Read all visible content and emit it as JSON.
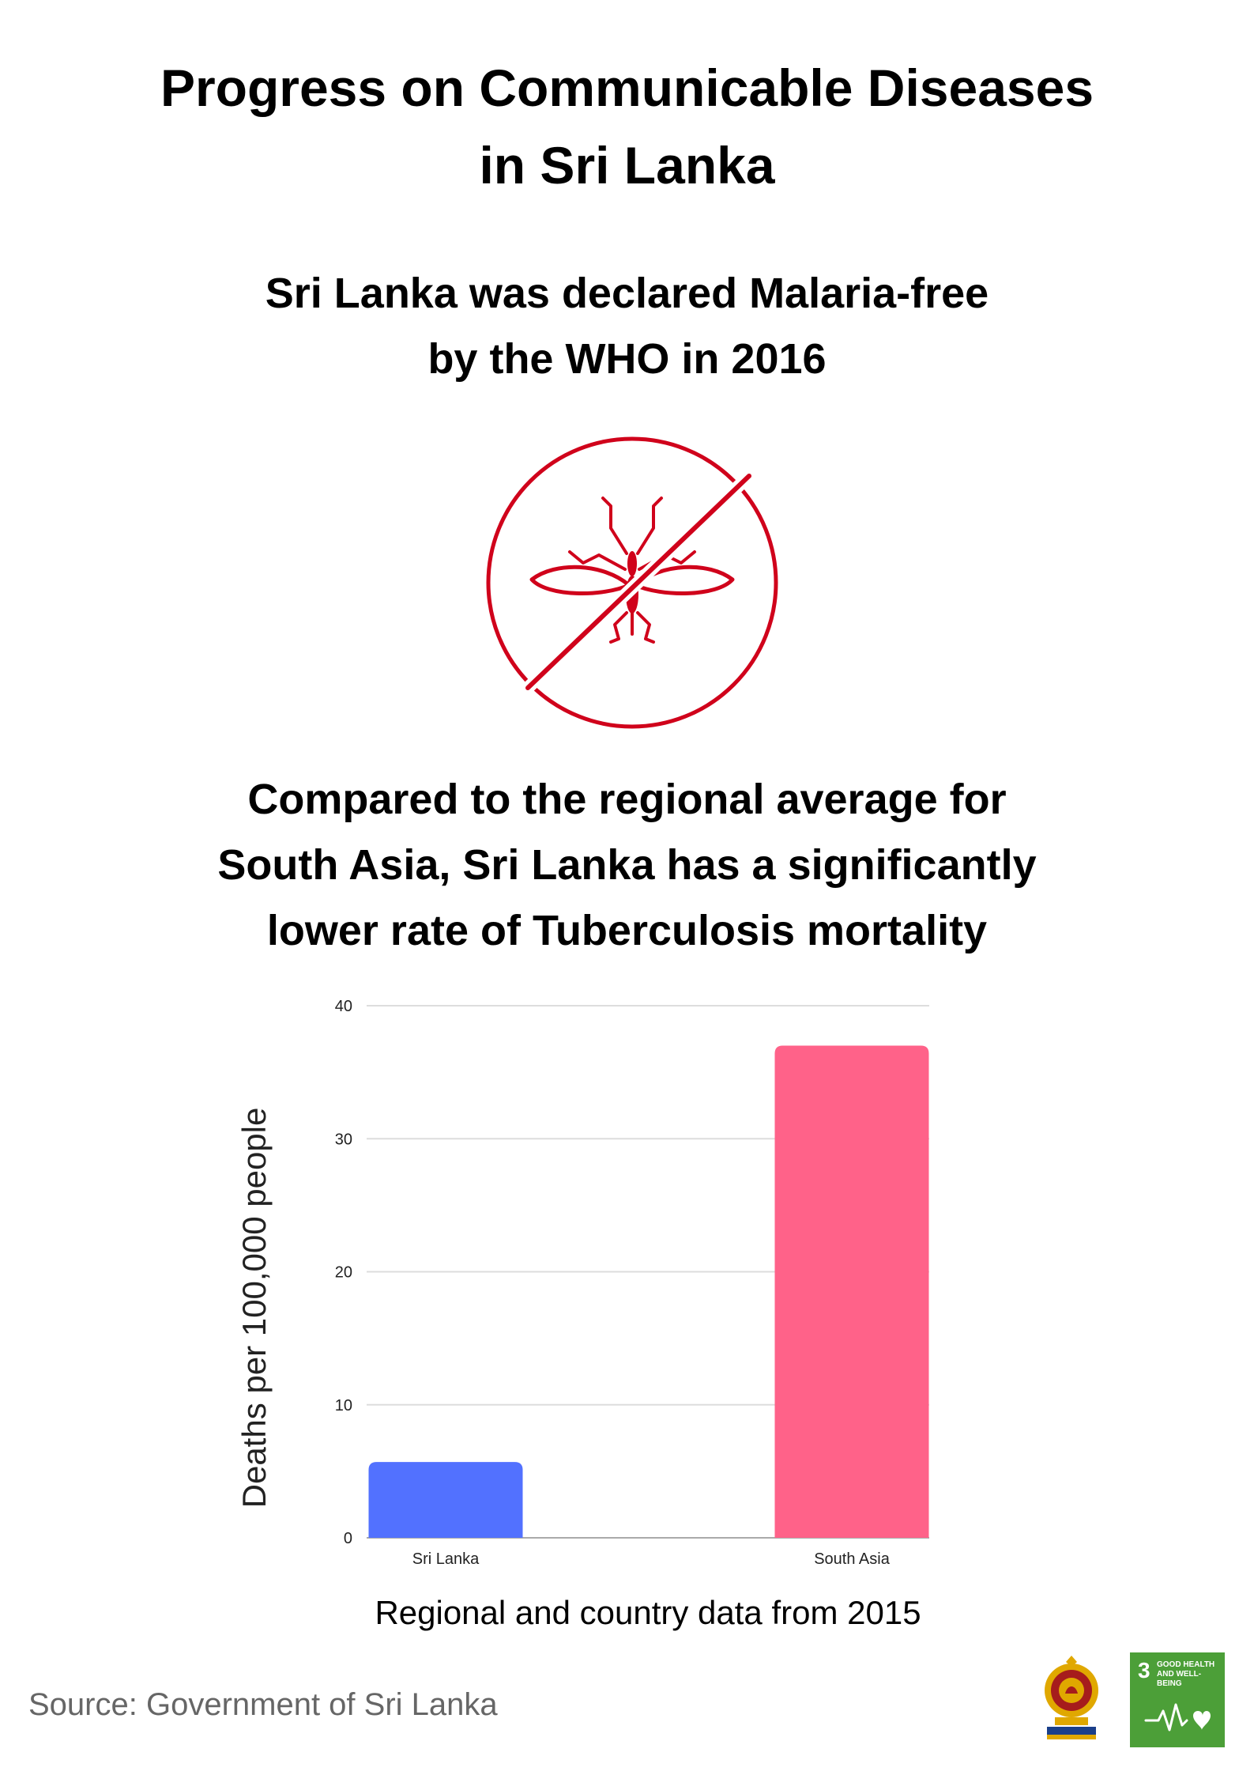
{
  "page": {
    "title_line1": "Progress on Communicable Diseases",
    "title_line2": "in Sri Lanka",
    "malaria_line1": "Sri Lanka was declared Malaria-free",
    "malaria_line2": "by the WHO in 2016",
    "tb_line1": "Compared to the regional average for",
    "tb_line2": "South Asia, Sri Lanka has a significantly",
    "tb_line3": "lower rate of Tuberculosis mortality",
    "caption": "Regional and country data from 2015",
    "source": "Source: Government of Sri Lanka",
    "sdg_number": "3",
    "sdg_label": "GOOD HEALTH AND WELL-BEING"
  },
  "icons": {
    "mosquito": "no-mosquito-icon",
    "emblem": "sri-lanka-emblem-icon",
    "sdg": "sdg-3-icon"
  },
  "colors": {
    "icon_red": "#d0021b",
    "sdg_green": "#4c9f38",
    "sri_lanka_bar": "#5271ff",
    "south_asia_bar": "#ff6289"
  },
  "chart_data": {
    "type": "bar",
    "categories": [
      "Sri Lanka",
      "South Asia"
    ],
    "values": [
      5.7,
      37
    ],
    "colors": [
      "#5271ff",
      "#ff6289"
    ],
    "title": "",
    "xlabel": "",
    "ylabel": "Deaths per 100,000 people",
    "ylim": [
      0,
      40
    ],
    "yticks": [
      0,
      10,
      20,
      30,
      40
    ],
    "grid": true,
    "legend": "none"
  }
}
